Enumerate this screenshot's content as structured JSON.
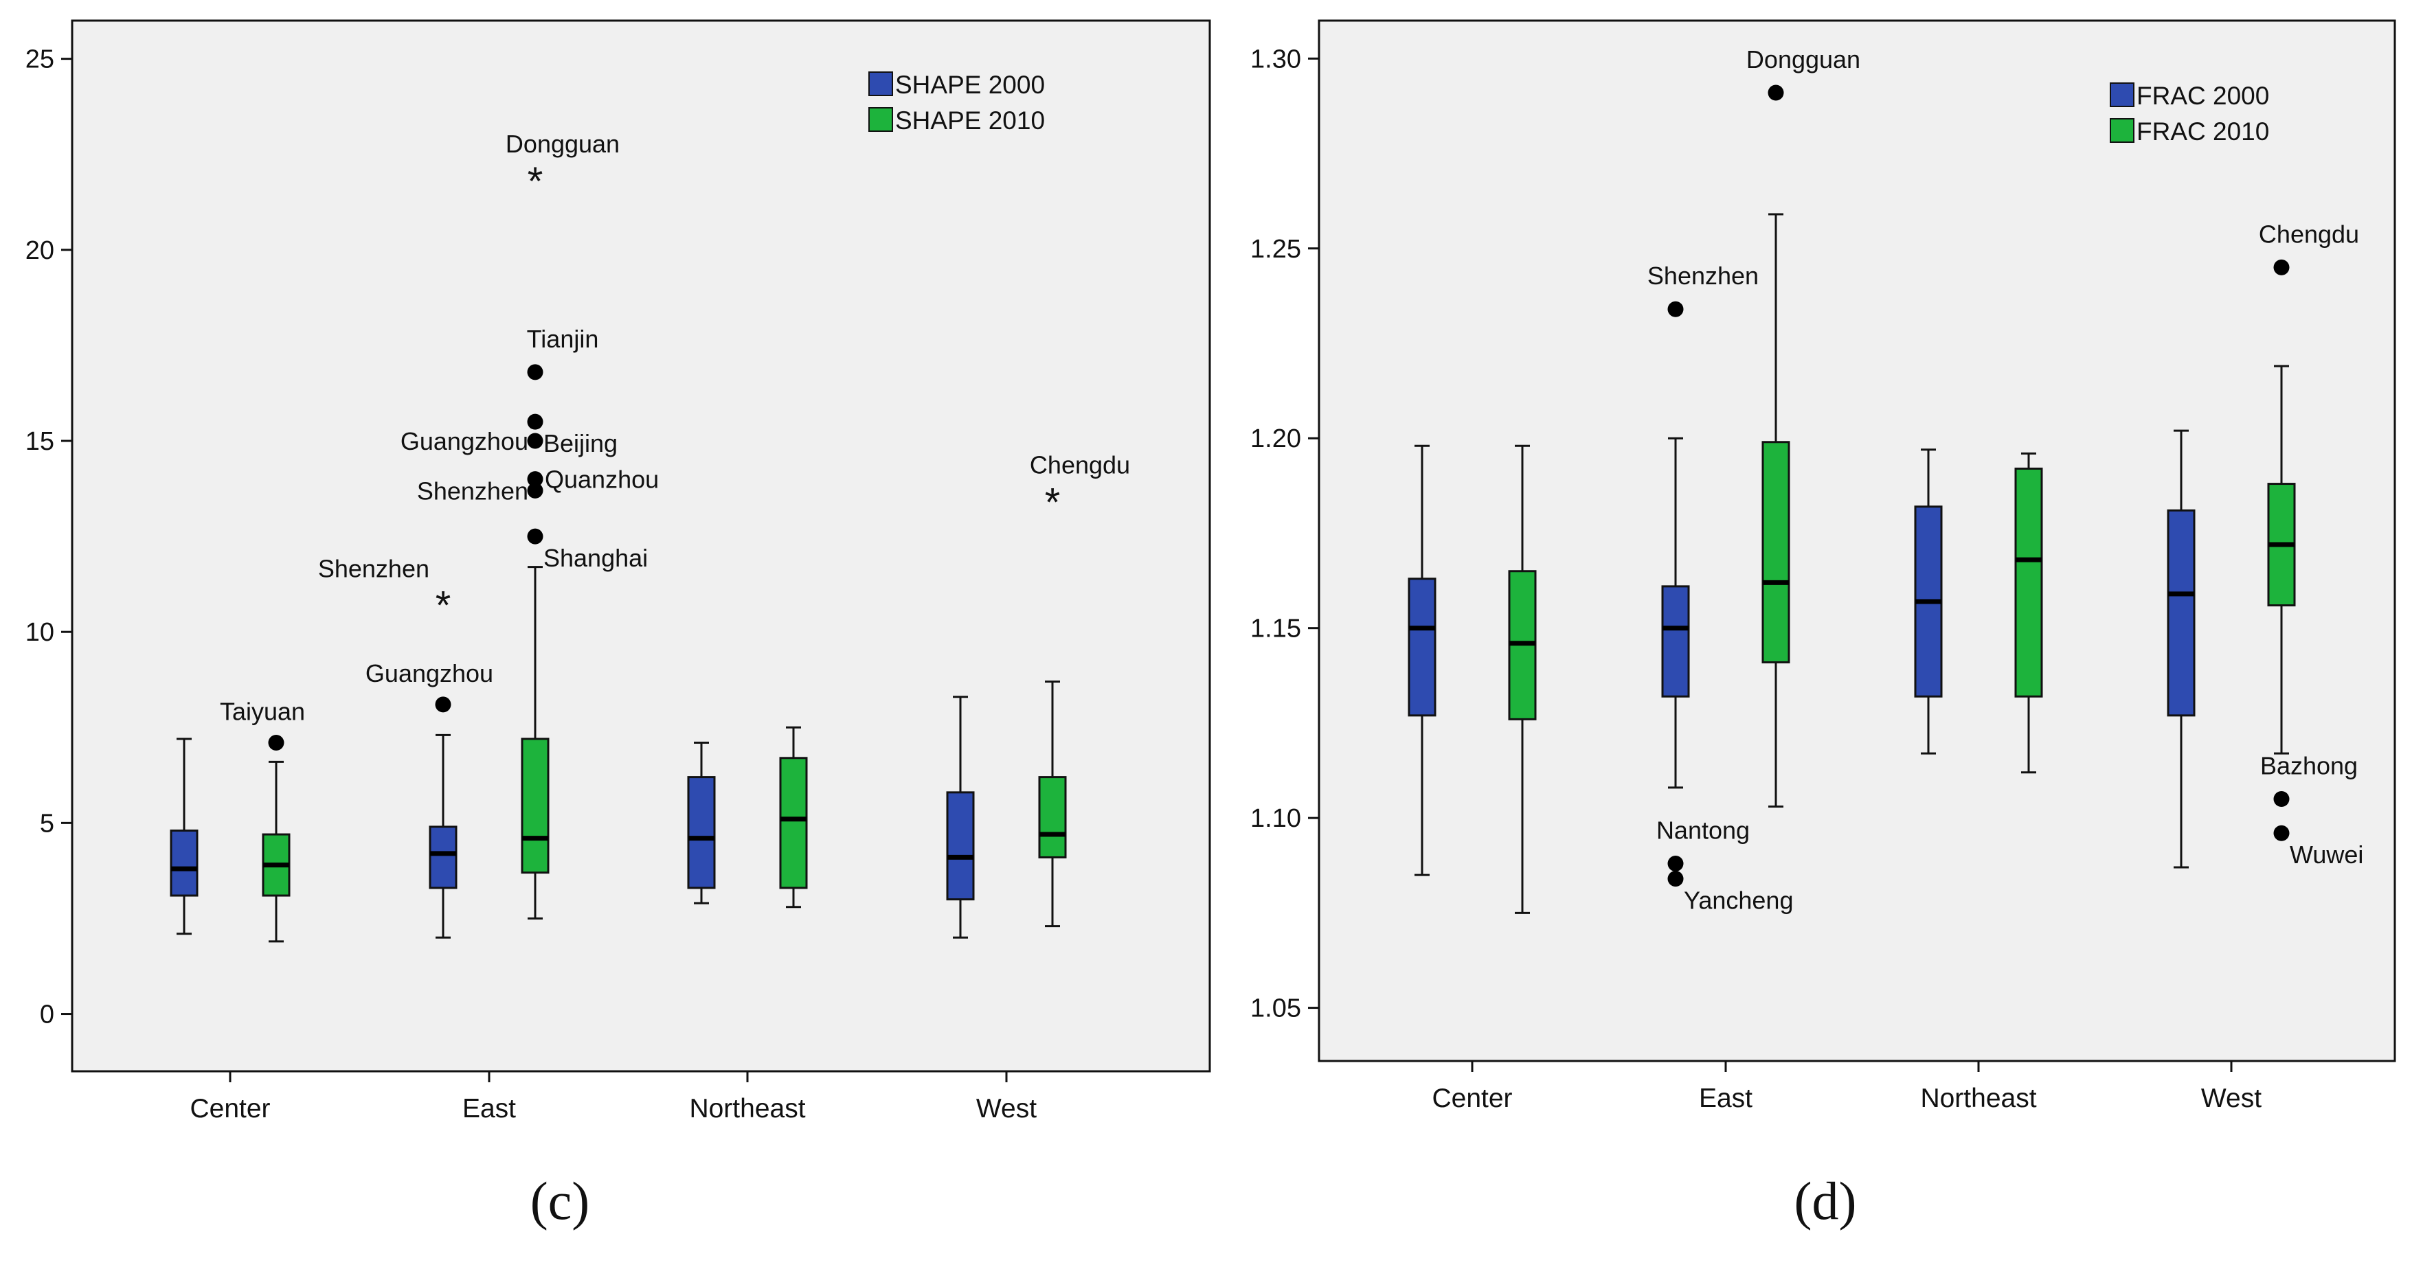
{
  "chart_data": [
    {
      "panel": "c",
      "panel_label_text": "(c)",
      "type": "boxplot",
      "categories": [
        "Center",
        "East",
        "Northeast",
        "West"
      ],
      "ylim": [
        -1.5,
        26
      ],
      "yticks": [
        0,
        5,
        10,
        15,
        20,
        25
      ],
      "tick_labels": [
        "0",
        "5",
        "10",
        "15",
        "20",
        "25"
      ],
      "series": [
        {
          "name": "SHAPE 2000",
          "color": "#2E4BB0",
          "boxes": [
            {
              "category": "Center",
              "min": 2.1,
              "q1": 3.1,
              "median": 3.8,
              "q3": 4.8,
              "max": 7.2
            },
            {
              "category": "East",
              "min": 2.0,
              "q1": 3.3,
              "median": 4.2,
              "q3": 4.9,
              "max": 7.3
            },
            {
              "category": "Northeast",
              "min": 2.9,
              "q1": 3.3,
              "median": 4.6,
              "q3": 6.2,
              "max": 7.1
            },
            {
              "category": "West",
              "min": 2.0,
              "q1": 3.0,
              "median": 4.1,
              "q3": 5.8,
              "max": 8.3
            }
          ]
        },
        {
          "name": "SHAPE 2010",
          "color": "#1DB33C",
          "boxes": [
            {
              "category": "Center",
              "min": 1.9,
              "q1": 3.1,
              "median": 3.9,
              "q3": 4.7,
              "max": 6.6
            },
            {
              "category": "East",
              "min": 2.5,
              "q1": 3.7,
              "median": 4.6,
              "q3": 7.2,
              "max": 11.7
            },
            {
              "category": "Northeast",
              "min": 2.8,
              "q1": 3.3,
              "median": 5.1,
              "q3": 6.7,
              "max": 7.5
            },
            {
              "category": "West",
              "min": 2.3,
              "q1": 4.1,
              "median": 4.7,
              "q3": 6.2,
              "max": 8.7
            }
          ]
        }
      ],
      "outliers": [
        {
          "category": "Center",
          "series": "SHAPE 2010",
          "value": 7.1,
          "marker": "dot",
          "label": "Taiyuan",
          "label_pos": "above-left"
        },
        {
          "category": "East",
          "series": "SHAPE 2000",
          "value": 8.1,
          "marker": "dot",
          "label": "Guangzhou",
          "label_pos": "above-left"
        },
        {
          "category": "East",
          "series": "SHAPE 2000",
          "value": 10.8,
          "marker": "star",
          "label": "Shenzhen",
          "label_pos": "above-right"
        },
        {
          "category": "East",
          "series": "SHAPE 2010",
          "value": 12.5,
          "marker": "dot",
          "label": "Shanghai",
          "label_pos": "below-right"
        },
        {
          "category": "East",
          "series": "SHAPE 2010",
          "value": 13.7,
          "marker": "dot",
          "label": "Shenzhen",
          "label_pos": "left"
        },
        {
          "category": "East",
          "series": "SHAPE 2010",
          "value": 14.0,
          "marker": "dot",
          "label": "Quanzhou",
          "label_pos": "right"
        },
        {
          "category": "East",
          "series": "SHAPE 2010",
          "value": 15.0,
          "marker": "dot",
          "label": "Guangzhou",
          "label_pos": "left"
        },
        {
          "category": "East",
          "series": "SHAPE 2010",
          "value": 15.5,
          "marker": "dot",
          "label": "Beijing",
          "label_pos": "below-right"
        },
        {
          "category": "East",
          "series": "SHAPE 2010",
          "value": 16.8,
          "marker": "dot",
          "label": "Tianjin",
          "label_pos": "above"
        },
        {
          "category": "East",
          "series": "SHAPE 2010",
          "value": 21.9,
          "marker": "star",
          "label": "Dongguan",
          "label_pos": "above"
        },
        {
          "category": "West",
          "series": "SHAPE 2010",
          "value": 13.5,
          "marker": "star",
          "label": "Chengdu",
          "label_pos": "above"
        }
      ]
    },
    {
      "panel": "d",
      "panel_label_text": "(d)",
      "type": "boxplot",
      "categories": [
        "Center",
        "East",
        "Northeast",
        "West"
      ],
      "ylim": [
        1.036,
        1.31
      ],
      "yticks": [
        1.05,
        1.1,
        1.15,
        1.2,
        1.25,
        1.3
      ],
      "tick_labels": [
        "1.05",
        "1.10",
        "1.15",
        "1.20",
        "1.25",
        "1.30"
      ],
      "series": [
        {
          "name": "FRAC 2000",
          "color": "#2E4BB0",
          "boxes": [
            {
              "category": "Center",
              "min": 1.085,
              "q1": 1.127,
              "median": 1.15,
              "q3": 1.163,
              "max": 1.198
            },
            {
              "category": "East",
              "min": 1.108,
              "q1": 1.132,
              "median": 1.15,
              "q3": 1.161,
              "max": 1.2
            },
            {
              "category": "Northeast",
              "min": 1.117,
              "q1": 1.132,
              "median": 1.157,
              "q3": 1.182,
              "max": 1.197
            },
            {
              "category": "West",
              "min": 1.087,
              "q1": 1.127,
              "median": 1.159,
              "q3": 1.181,
              "max": 1.202
            }
          ]
        },
        {
          "name": "FRAC 2010",
          "color": "#1DB33C",
          "boxes": [
            {
              "category": "Center",
              "min": 1.075,
              "q1": 1.126,
              "median": 1.146,
              "q3": 1.165,
              "max": 1.198
            },
            {
              "category": "East",
              "min": 1.103,
              "q1": 1.141,
              "median": 1.162,
              "q3": 1.199,
              "max": 1.259
            },
            {
              "category": "Northeast",
              "min": 1.112,
              "q1": 1.132,
              "median": 1.168,
              "q3": 1.192,
              "max": 1.196
            },
            {
              "category": "West",
              "min": 1.117,
              "q1": 1.156,
              "median": 1.172,
              "q3": 1.188,
              "max": 1.219
            }
          ]
        }
      ],
      "outliers": [
        {
          "category": "East",
          "series": "FRAC 2000",
          "value": 1.234,
          "marker": "dot",
          "label": "Shenzhen",
          "label_pos": "above"
        },
        {
          "category": "East",
          "series": "FRAC 2000",
          "value": 1.088,
          "marker": "dot",
          "label": "Nantong",
          "label_pos": "above"
        },
        {
          "category": "East",
          "series": "FRAC 2000",
          "value": 1.084,
          "marker": "dot",
          "label": "Yancheng",
          "label_pos": "below-right"
        },
        {
          "category": "East",
          "series": "FRAC 2010",
          "value": 1.291,
          "marker": "dot",
          "label": "Dongguan",
          "label_pos": "above"
        },
        {
          "category": "West",
          "series": "FRAC 2010",
          "value": 1.245,
          "marker": "dot",
          "label": "Chengdu",
          "label_pos": "above"
        },
        {
          "category": "West",
          "series": "FRAC 2010",
          "value": 1.105,
          "marker": "dot",
          "label": "Bazhong",
          "label_pos": "above"
        },
        {
          "category": "West",
          "series": "FRAC 2010",
          "value": 1.096,
          "marker": "dot",
          "label": "Wuwei",
          "label_pos": "below-right"
        }
      ]
    }
  ]
}
